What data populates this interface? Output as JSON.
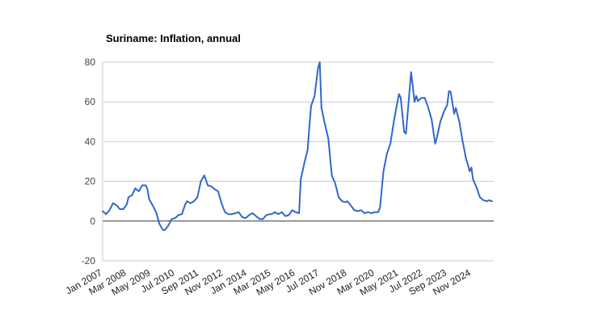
{
  "chart_data": {
    "type": "line",
    "title": "Suriname: Inflation, annual",
    "xlabel": "",
    "ylabel": "",
    "ylim": [
      -20,
      80
    ],
    "yticks": [
      -20,
      0,
      20,
      40,
      60,
      80
    ],
    "grid": true,
    "legend": "none",
    "x_tick_labels": [
      "Jan 2007",
      "Mar 2008",
      "May 2009",
      "Jul 2010",
      "Sep 2011",
      "Nov 2012",
      "Jan 2014",
      "Mar 2015",
      "May 2016",
      "Jul 2017",
      "Nov 2018",
      "Mar 2020",
      "May 2021",
      "Jul 2022",
      "Sep 2023",
      "Nov 2024"
    ],
    "x_tick_dates": [
      "2007-01",
      "2008-03",
      "2009-05",
      "2010-07",
      "2011-09",
      "2012-11",
      "2014-01",
      "2015-03",
      "2016-05",
      "2017-07",
      "2018-11",
      "2020-03",
      "2021-05",
      "2022-07",
      "2023-09",
      "2024-11"
    ],
    "series": [
      {
        "color": "#3366cc",
        "points": [
          [
            "2007-01",
            5.0
          ],
          [
            "2007-03",
            3.5
          ],
          [
            "2007-05",
            5.5
          ],
          [
            "2007-07",
            9.0
          ],
          [
            "2007-09",
            8.0
          ],
          [
            "2007-11",
            6.0
          ],
          [
            "2008-01",
            6.0
          ],
          [
            "2008-03",
            8.5
          ],
          [
            "2008-04",
            12.0
          ],
          [
            "2008-06",
            13.0
          ],
          [
            "2008-08",
            16.5
          ],
          [
            "2008-10",
            15.0
          ],
          [
            "2008-12",
            18.0
          ],
          [
            "2009-02",
            18.0
          ],
          [
            "2009-03",
            16.0
          ],
          [
            "2009-04",
            11.0
          ],
          [
            "2009-06",
            8.0
          ],
          [
            "2009-08",
            4.5
          ],
          [
            "2009-10",
            -1.5
          ],
          [
            "2009-12",
            -4.5
          ],
          [
            "2010-01",
            -4.5
          ],
          [
            "2010-03",
            -2.5
          ],
          [
            "2010-05",
            1.0
          ],
          [
            "2010-07",
            1.5
          ],
          [
            "2010-09",
            3.0
          ],
          [
            "2010-11",
            3.5
          ],
          [
            "2011-01",
            8.5
          ],
          [
            "2011-02",
            10.0
          ],
          [
            "2011-04",
            9.0
          ],
          [
            "2011-06",
            10.0
          ],
          [
            "2011-08",
            12.0
          ],
          [
            "2011-10",
            20.0
          ],
          [
            "2011-12",
            23.0
          ],
          [
            "2012-02",
            18.0
          ],
          [
            "2012-04",
            17.5
          ],
          [
            "2012-06",
            16.0
          ],
          [
            "2012-08",
            15.0
          ],
          [
            "2012-10",
            9.0
          ],
          [
            "2012-12",
            4.5
          ],
          [
            "2013-02",
            3.5
          ],
          [
            "2013-04",
            3.5
          ],
          [
            "2013-06",
            4.0
          ],
          [
            "2013-08",
            4.5
          ],
          [
            "2013-10",
            2.0
          ],
          [
            "2013-12",
            1.5
          ],
          [
            "2014-02",
            3.0
          ],
          [
            "2014-04",
            4.0
          ],
          [
            "2014-06",
            2.5
          ],
          [
            "2014-08",
            1.0
          ],
          [
            "2014-10",
            1.0
          ],
          [
            "2014-12",
            3.0
          ],
          [
            "2015-02",
            3.5
          ],
          [
            "2015-03",
            3.5
          ],
          [
            "2015-05",
            4.5
          ],
          [
            "2015-07",
            3.5
          ],
          [
            "2015-09",
            4.5
          ],
          [
            "2015-11",
            2.5
          ],
          [
            "2016-01",
            3.0
          ],
          [
            "2016-03",
            5.5
          ],
          [
            "2016-05",
            4.5
          ],
          [
            "2016-07",
            4.0
          ],
          [
            "2016-08",
            21.0
          ],
          [
            "2016-10",
            29.0
          ],
          [
            "2016-12",
            36.0
          ],
          [
            "2017-01",
            48.0
          ],
          [
            "2017-02",
            58.0
          ],
          [
            "2017-04",
            63.0
          ],
          [
            "2017-06",
            77.0
          ],
          [
            "2017-07",
            80.0
          ],
          [
            "2017-08",
            57.0
          ],
          [
            "2017-10",
            49.0
          ],
          [
            "2017-12",
            41.5
          ],
          [
            "2018-02",
            23.0
          ],
          [
            "2018-04",
            19.0
          ],
          [
            "2018-06",
            12.0
          ],
          [
            "2018-08",
            10.0
          ],
          [
            "2018-10",
            9.5
          ],
          [
            "2018-11",
            10.0
          ],
          [
            "2019-01",
            8.0
          ],
          [
            "2019-03",
            5.5
          ],
          [
            "2019-05",
            5.0
          ],
          [
            "2019-07",
            5.5
          ],
          [
            "2019-09",
            4.0
          ],
          [
            "2019-11",
            4.5
          ],
          [
            "2020-01",
            4.0
          ],
          [
            "2020-03",
            4.5
          ],
          [
            "2020-05",
            4.5
          ],
          [
            "2020-06",
            7.0
          ],
          [
            "2020-08",
            25.0
          ],
          [
            "2020-10",
            34.0
          ],
          [
            "2020-12",
            39.0
          ],
          [
            "2021-02",
            50.0
          ],
          [
            "2021-03",
            55.0
          ],
          [
            "2021-05",
            64.0
          ],
          [
            "2021-06",
            62.0
          ],
          [
            "2021-08",
            45.0
          ],
          [
            "2021-09",
            44.0
          ],
          [
            "2021-10",
            54.0
          ],
          [
            "2021-12",
            75.0
          ],
          [
            "2022-01",
            68.0
          ],
          [
            "2022-02",
            60.0
          ],
          [
            "2022-03",
            63.0
          ],
          [
            "2022-04",
            60.5
          ],
          [
            "2022-06",
            62.0
          ],
          [
            "2022-08",
            62.0
          ],
          [
            "2022-10",
            57.0
          ],
          [
            "2022-12",
            51.0
          ],
          [
            "2023-02",
            39.0
          ],
          [
            "2023-03",
            42.0
          ],
          [
            "2023-05",
            50.0
          ],
          [
            "2023-07",
            55.0
          ],
          [
            "2023-09",
            58.5
          ],
          [
            "2023-10",
            65.5
          ],
          [
            "2023-11",
            65.0
          ],
          [
            "2024-01",
            54.0
          ],
          [
            "2024-02",
            57.0
          ],
          [
            "2024-04",
            50.0
          ],
          [
            "2024-06",
            40.0
          ],
          [
            "2024-08",
            31.0
          ],
          [
            "2024-09",
            28.5
          ],
          [
            "2024-10",
            25.0
          ],
          [
            "2024-11",
            27.0
          ],
          [
            "2024-12",
            21.0
          ],
          [
            "2025-02",
            17.0
          ],
          [
            "2025-04",
            12.0
          ],
          [
            "2025-06",
            10.5
          ],
          [
            "2025-08",
            10.0
          ],
          [
            "2025-09",
            10.5
          ],
          [
            "2025-11",
            10.0
          ]
        ]
      }
    ]
  }
}
